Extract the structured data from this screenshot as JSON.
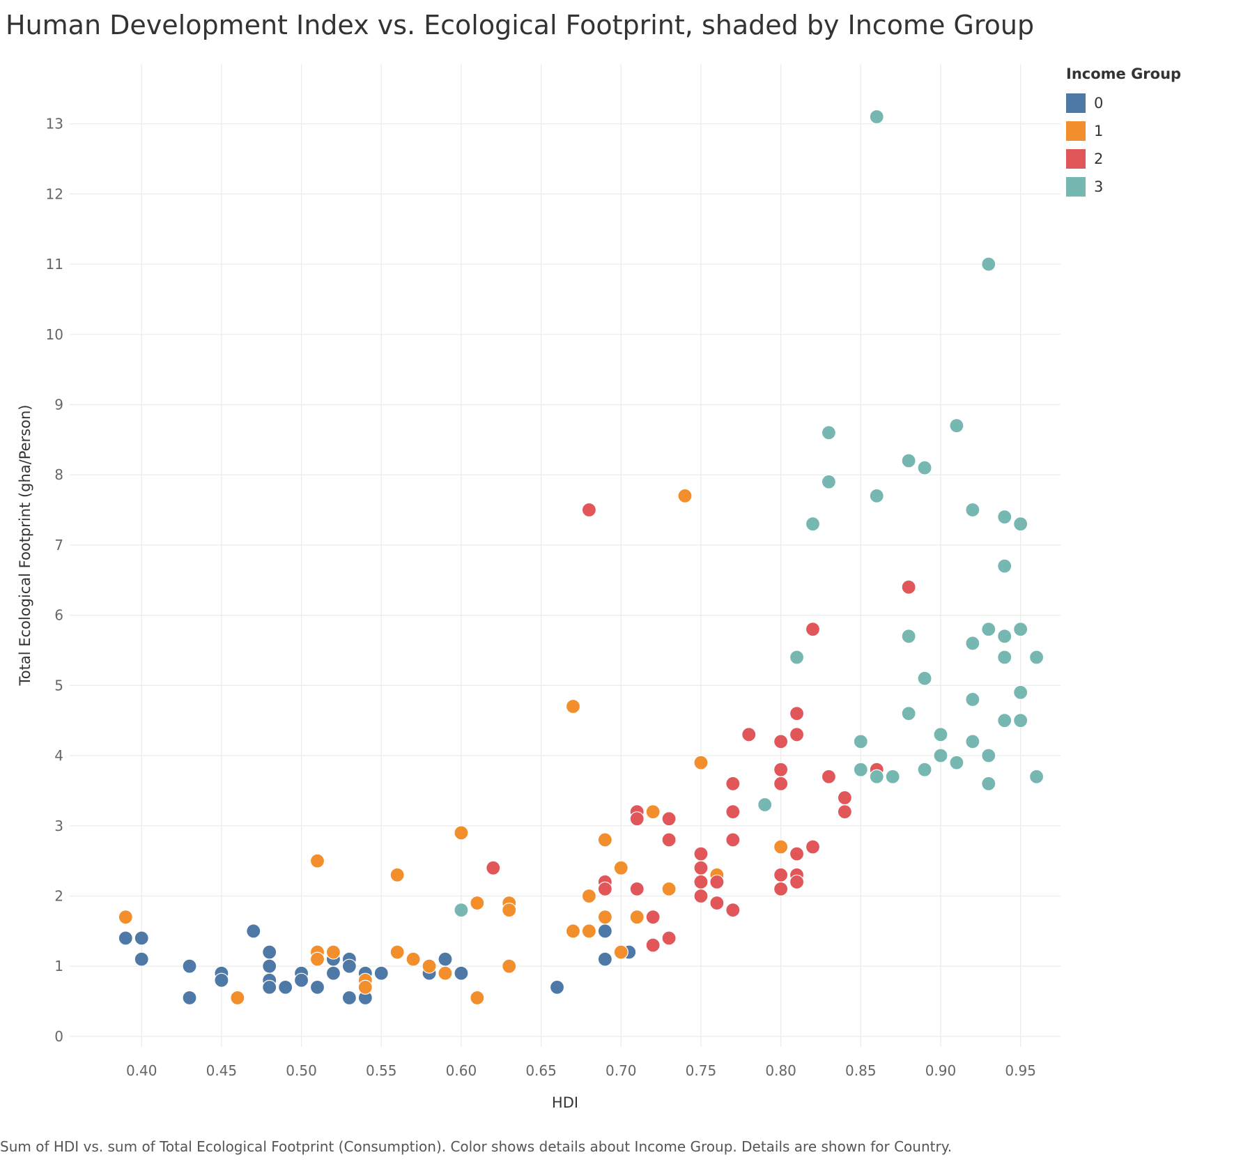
{
  "title": "Human Development Index vs. Ecological Footprint, shaded by Income Group",
  "footnote": "Sum of HDI vs. sum of Total Ecological Footprint (Consumption).  Color shows details about Income Group.  Details are shown for Country.",
  "legend": {
    "title": "Income Group",
    "items": [
      {
        "label": "0",
        "color": "#4e79a7"
      },
      {
        "label": "1",
        "color": "#f28e2b"
      },
      {
        "label": "2",
        "color": "#e15759"
      },
      {
        "label": "3",
        "color": "#76b7b2"
      }
    ]
  },
  "chart_data": {
    "type": "scatter",
    "title": "Human Development Index vs. Ecological Footprint, shaded by Income Group",
    "xlabel": "HDI",
    "ylabel": "Total Ecological Footprint (gha/Person)",
    "xlim": [
      0.355,
      0.975
    ],
    "ylim": [
      -0.15,
      13.85
    ],
    "x_ticks": [
      "0.40",
      "0.45",
      "0.50",
      "0.55",
      "0.60",
      "0.65",
      "0.70",
      "0.75",
      "0.80",
      "0.85",
      "0.90",
      "0.95"
    ],
    "y_ticks": [
      "0",
      "1",
      "2",
      "3",
      "4",
      "5",
      "6",
      "7",
      "8",
      "9",
      "10",
      "11",
      "12",
      "13"
    ],
    "grid": true,
    "legend_position": "top-right",
    "series": [
      {
        "name": "0",
        "color": "#4e79a7",
        "points": [
          [
            0.39,
            1.4
          ],
          [
            0.4,
            1.4
          ],
          [
            0.4,
            1.1
          ],
          [
            0.43,
            1.0
          ],
          [
            0.43,
            0.55
          ],
          [
            0.45,
            0.9
          ],
          [
            0.45,
            0.8
          ],
          [
            0.47,
            1.5
          ],
          [
            0.48,
            1.2
          ],
          [
            0.48,
            1.0
          ],
          [
            0.48,
            0.8
          ],
          [
            0.48,
            0.7
          ],
          [
            0.49,
            0.7
          ],
          [
            0.5,
            0.9
          ],
          [
            0.5,
            0.8
          ],
          [
            0.51,
            0.7
          ],
          [
            0.52,
            1.1
          ],
          [
            0.52,
            0.9
          ],
          [
            0.53,
            1.1
          ],
          [
            0.53,
            1.0
          ],
          [
            0.53,
            0.55
          ],
          [
            0.54,
            0.9
          ],
          [
            0.54,
            0.55
          ],
          [
            0.55,
            0.9
          ],
          [
            0.58,
            0.9
          ],
          [
            0.59,
            1.1
          ],
          [
            0.6,
            0.9
          ],
          [
            0.66,
            0.7
          ],
          [
            0.69,
            1.5
          ],
          [
            0.69,
            1.1
          ],
          [
            0.705,
            1.2
          ]
        ]
      },
      {
        "name": "1",
        "color": "#f28e2b",
        "points": [
          [
            0.39,
            1.7
          ],
          [
            0.46,
            0.55
          ],
          [
            0.51,
            2.5
          ],
          [
            0.51,
            1.2
          ],
          [
            0.51,
            1.1
          ],
          [
            0.52,
            1.2
          ],
          [
            0.54,
            0.8
          ],
          [
            0.54,
            0.7
          ],
          [
            0.56,
            2.3
          ],
          [
            0.56,
            1.2
          ],
          [
            0.57,
            1.1
          ],
          [
            0.58,
            1.0
          ],
          [
            0.59,
            0.9
          ],
          [
            0.6,
            2.9
          ],
          [
            0.61,
            1.9
          ],
          [
            0.61,
            0.55
          ],
          [
            0.63,
            1.9
          ],
          [
            0.63,
            1.8
          ],
          [
            0.63,
            1.0
          ],
          [
            0.67,
            4.7
          ],
          [
            0.67,
            1.5
          ],
          [
            0.68,
            2.0
          ],
          [
            0.68,
            1.5
          ],
          [
            0.69,
            2.8
          ],
          [
            0.69,
            1.7
          ],
          [
            0.7,
            2.4
          ],
          [
            0.7,
            1.2
          ],
          [
            0.71,
            1.7
          ],
          [
            0.72,
            3.2
          ],
          [
            0.73,
            2.1
          ],
          [
            0.74,
            7.7
          ],
          [
            0.75,
            3.9
          ],
          [
            0.76,
            2.3
          ],
          [
            0.8,
            2.7
          ]
        ]
      },
      {
        "name": "2",
        "color": "#e15759",
        "points": [
          [
            0.62,
            2.4
          ],
          [
            0.68,
            7.5
          ],
          [
            0.69,
            2.2
          ],
          [
            0.69,
            2.1
          ],
          [
            0.71,
            3.2
          ],
          [
            0.71,
            3.1
          ],
          [
            0.71,
            2.1
          ],
          [
            0.72,
            1.7
          ],
          [
            0.72,
            1.3
          ],
          [
            0.73,
            3.1
          ],
          [
            0.73,
            2.8
          ],
          [
            0.73,
            1.4
          ],
          [
            0.75,
            2.6
          ],
          [
            0.75,
            2.4
          ],
          [
            0.75,
            2.2
          ],
          [
            0.75,
            2.0
          ],
          [
            0.76,
            2.2
          ],
          [
            0.76,
            1.9
          ],
          [
            0.77,
            3.6
          ],
          [
            0.77,
            3.2
          ],
          [
            0.77,
            2.8
          ],
          [
            0.77,
            1.8
          ],
          [
            0.78,
            4.3
          ],
          [
            0.8,
            4.2
          ],
          [
            0.8,
            3.8
          ],
          [
            0.8,
            3.6
          ],
          [
            0.8,
            2.3
          ],
          [
            0.8,
            2.1
          ],
          [
            0.81,
            4.6
          ],
          [
            0.81,
            4.3
          ],
          [
            0.81,
            2.6
          ],
          [
            0.81,
            2.3
          ],
          [
            0.81,
            2.2
          ],
          [
            0.82,
            5.8
          ],
          [
            0.82,
            2.7
          ],
          [
            0.83,
            3.7
          ],
          [
            0.84,
            3.4
          ],
          [
            0.84,
            3.2
          ],
          [
            0.86,
            3.8
          ],
          [
            0.88,
            6.4
          ]
        ]
      },
      {
        "name": "3",
        "color": "#76b7b2",
        "points": [
          [
            0.6,
            1.8
          ],
          [
            0.79,
            3.3
          ],
          [
            0.81,
            5.4
          ],
          [
            0.82,
            7.3
          ],
          [
            0.83,
            8.6
          ],
          [
            0.83,
            7.9
          ],
          [
            0.85,
            4.2
          ],
          [
            0.85,
            3.8
          ],
          [
            0.86,
            13.1
          ],
          [
            0.86,
            7.7
          ],
          [
            0.86,
            3.7
          ],
          [
            0.87,
            3.7
          ],
          [
            0.88,
            8.2
          ],
          [
            0.88,
            5.7
          ],
          [
            0.88,
            4.6
          ],
          [
            0.89,
            8.1
          ],
          [
            0.89,
            5.1
          ],
          [
            0.89,
            3.8
          ],
          [
            0.9,
            4.3
          ],
          [
            0.9,
            4.0
          ],
          [
            0.91,
            8.7
          ],
          [
            0.91,
            3.9
          ],
          [
            0.92,
            7.5
          ],
          [
            0.92,
            5.6
          ],
          [
            0.92,
            4.8
          ],
          [
            0.92,
            4.2
          ],
          [
            0.93,
            11.0
          ],
          [
            0.93,
            5.8
          ],
          [
            0.93,
            4.0
          ],
          [
            0.93,
            3.6
          ],
          [
            0.94,
            7.4
          ],
          [
            0.94,
            6.7
          ],
          [
            0.94,
            5.7
          ],
          [
            0.94,
            5.4
          ],
          [
            0.94,
            4.5
          ],
          [
            0.95,
            7.3
          ],
          [
            0.95,
            5.8
          ],
          [
            0.95,
            4.9
          ],
          [
            0.95,
            4.5
          ],
          [
            0.96,
            5.4
          ],
          [
            0.96,
            3.7
          ]
        ]
      }
    ]
  }
}
